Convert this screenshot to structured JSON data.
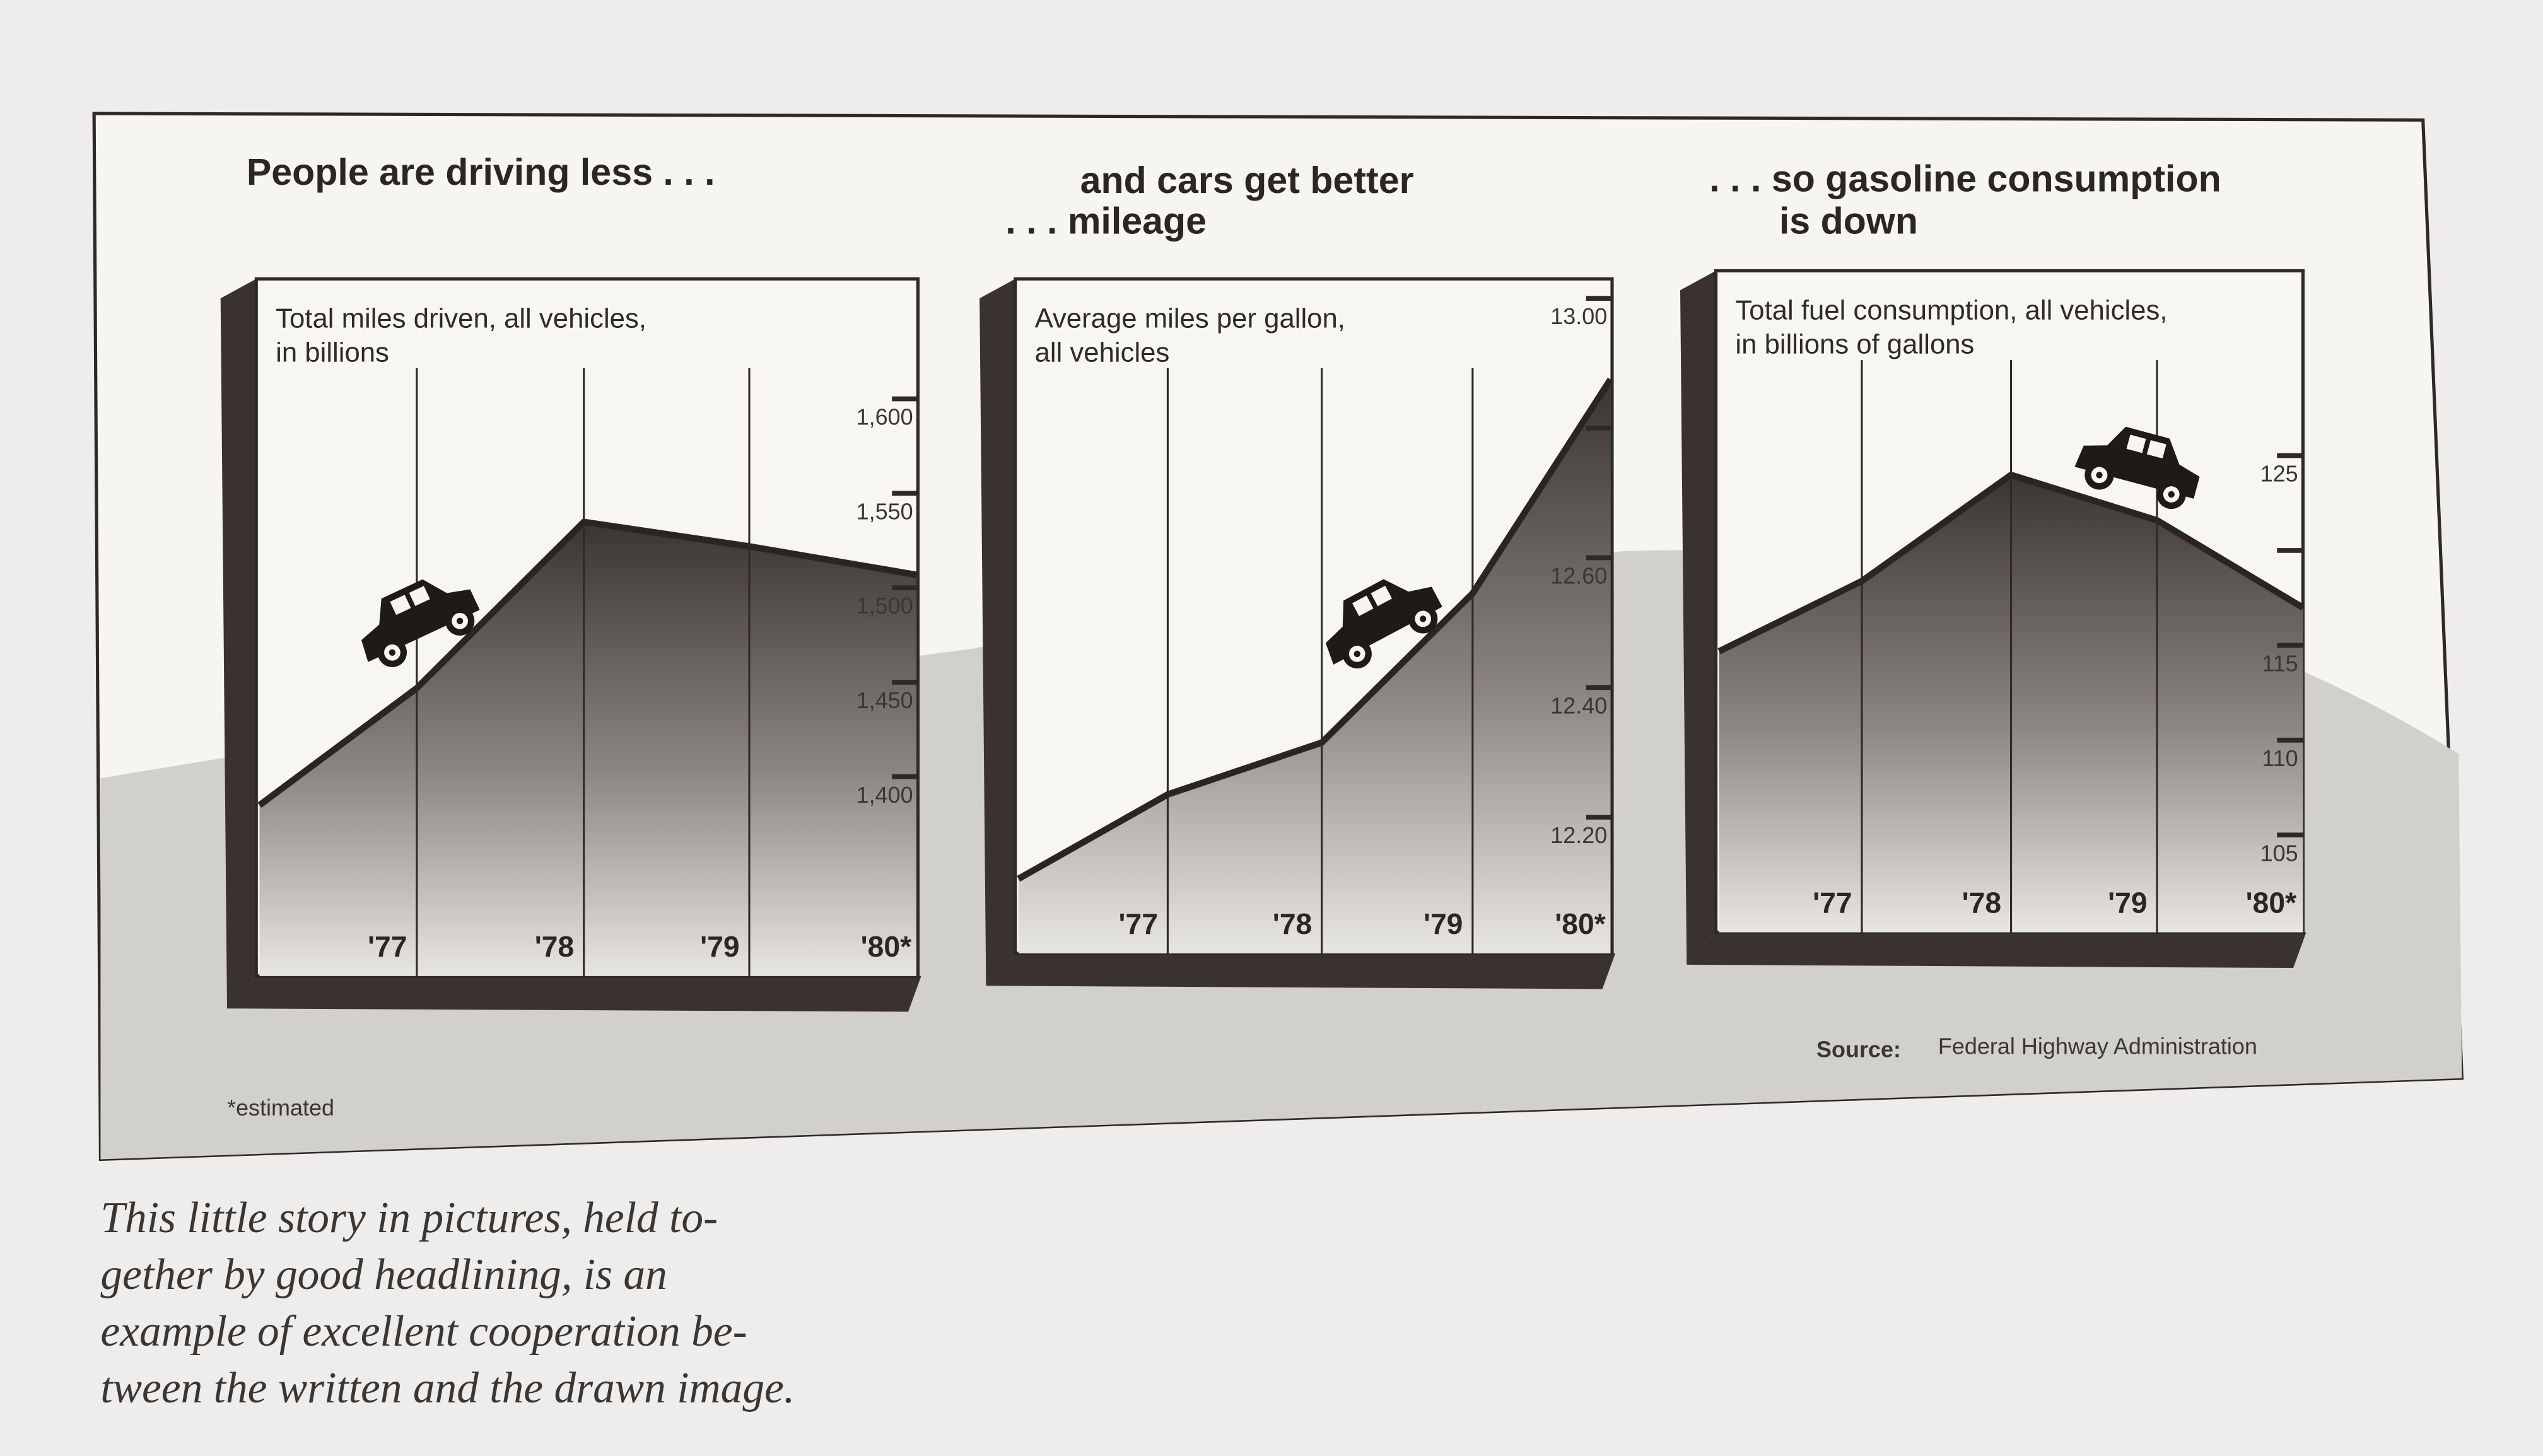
{
  "headlines": [
    "People are driving less . . .",
    "and cars get better",
    ". . . mileage",
    ". . . so gasoline consumption",
    "is down"
  ],
  "source_label": "Source:",
  "source_text": "Federal Highway Administration",
  "footnote": "*estimated",
  "caption": [
    "This little story in pictures, held to-",
    "gether by good headlining, is an",
    "example of excellent cooperation be-",
    "tween the written and the drawn image."
  ],
  "chart_data": [
    {
      "type": "area",
      "title": "Total miles driven, all vehicles,",
      "title2": "in billions",
      "x_labels": [
        "'77",
        "'78",
        "'79",
        "'80*"
      ],
      "x": [
        0,
        1,
        2,
        3,
        4
      ],
      "values": [
        1390,
        1452,
        1540,
        1527,
        1512
      ],
      "yticks": [
        "1,400",
        "1,450",
        "1,500",
        "1,550",
        "1,600"
      ],
      "ytick_values": [
        1400,
        1450,
        1500,
        1550,
        1600
      ],
      "ylim": [
        1300,
        1700
      ]
    },
    {
      "type": "area",
      "title": "Average miles per gallon,",
      "title2": "all vehicles",
      "x_labels": [
        "'77",
        "'78",
        "'79",
        "'80*"
      ],
      "x": [
        0,
        1,
        2,
        3,
        4
      ],
      "values": [
        12.12,
        12.25,
        12.33,
        12.56,
        12.89
      ],
      "yticks": [
        "12.20",
        "12.40",
        "12.60",
        "",
        "13.00"
      ],
      "ytick_values": [
        12.2,
        12.4,
        12.6,
        12.8,
        13.0
      ],
      "ylim": [
        12.0,
        13.05
      ]
    },
    {
      "type": "area",
      "title": "Total fuel consumption, all vehicles,",
      "title2": "in billions of gallons",
      "x_labels": [
        "'77",
        "'78",
        "'79",
        "'80*"
      ],
      "x": [
        0,
        1,
        2,
        3,
        4
      ],
      "values": [
        115.2,
        118.9,
        124.5,
        122.1,
        117.5
      ],
      "yticks": [
        "105",
        "110",
        "115",
        "",
        "125"
      ],
      "ytick_values": [
        105,
        110,
        115,
        120,
        125
      ],
      "ylim": [
        100,
        130
      ]
    }
  ],
  "colors": {
    "ink": "#2e2826",
    "paper": "#f6f5f2",
    "page": "#eeedeb",
    "hill": "#cfcdca"
  }
}
